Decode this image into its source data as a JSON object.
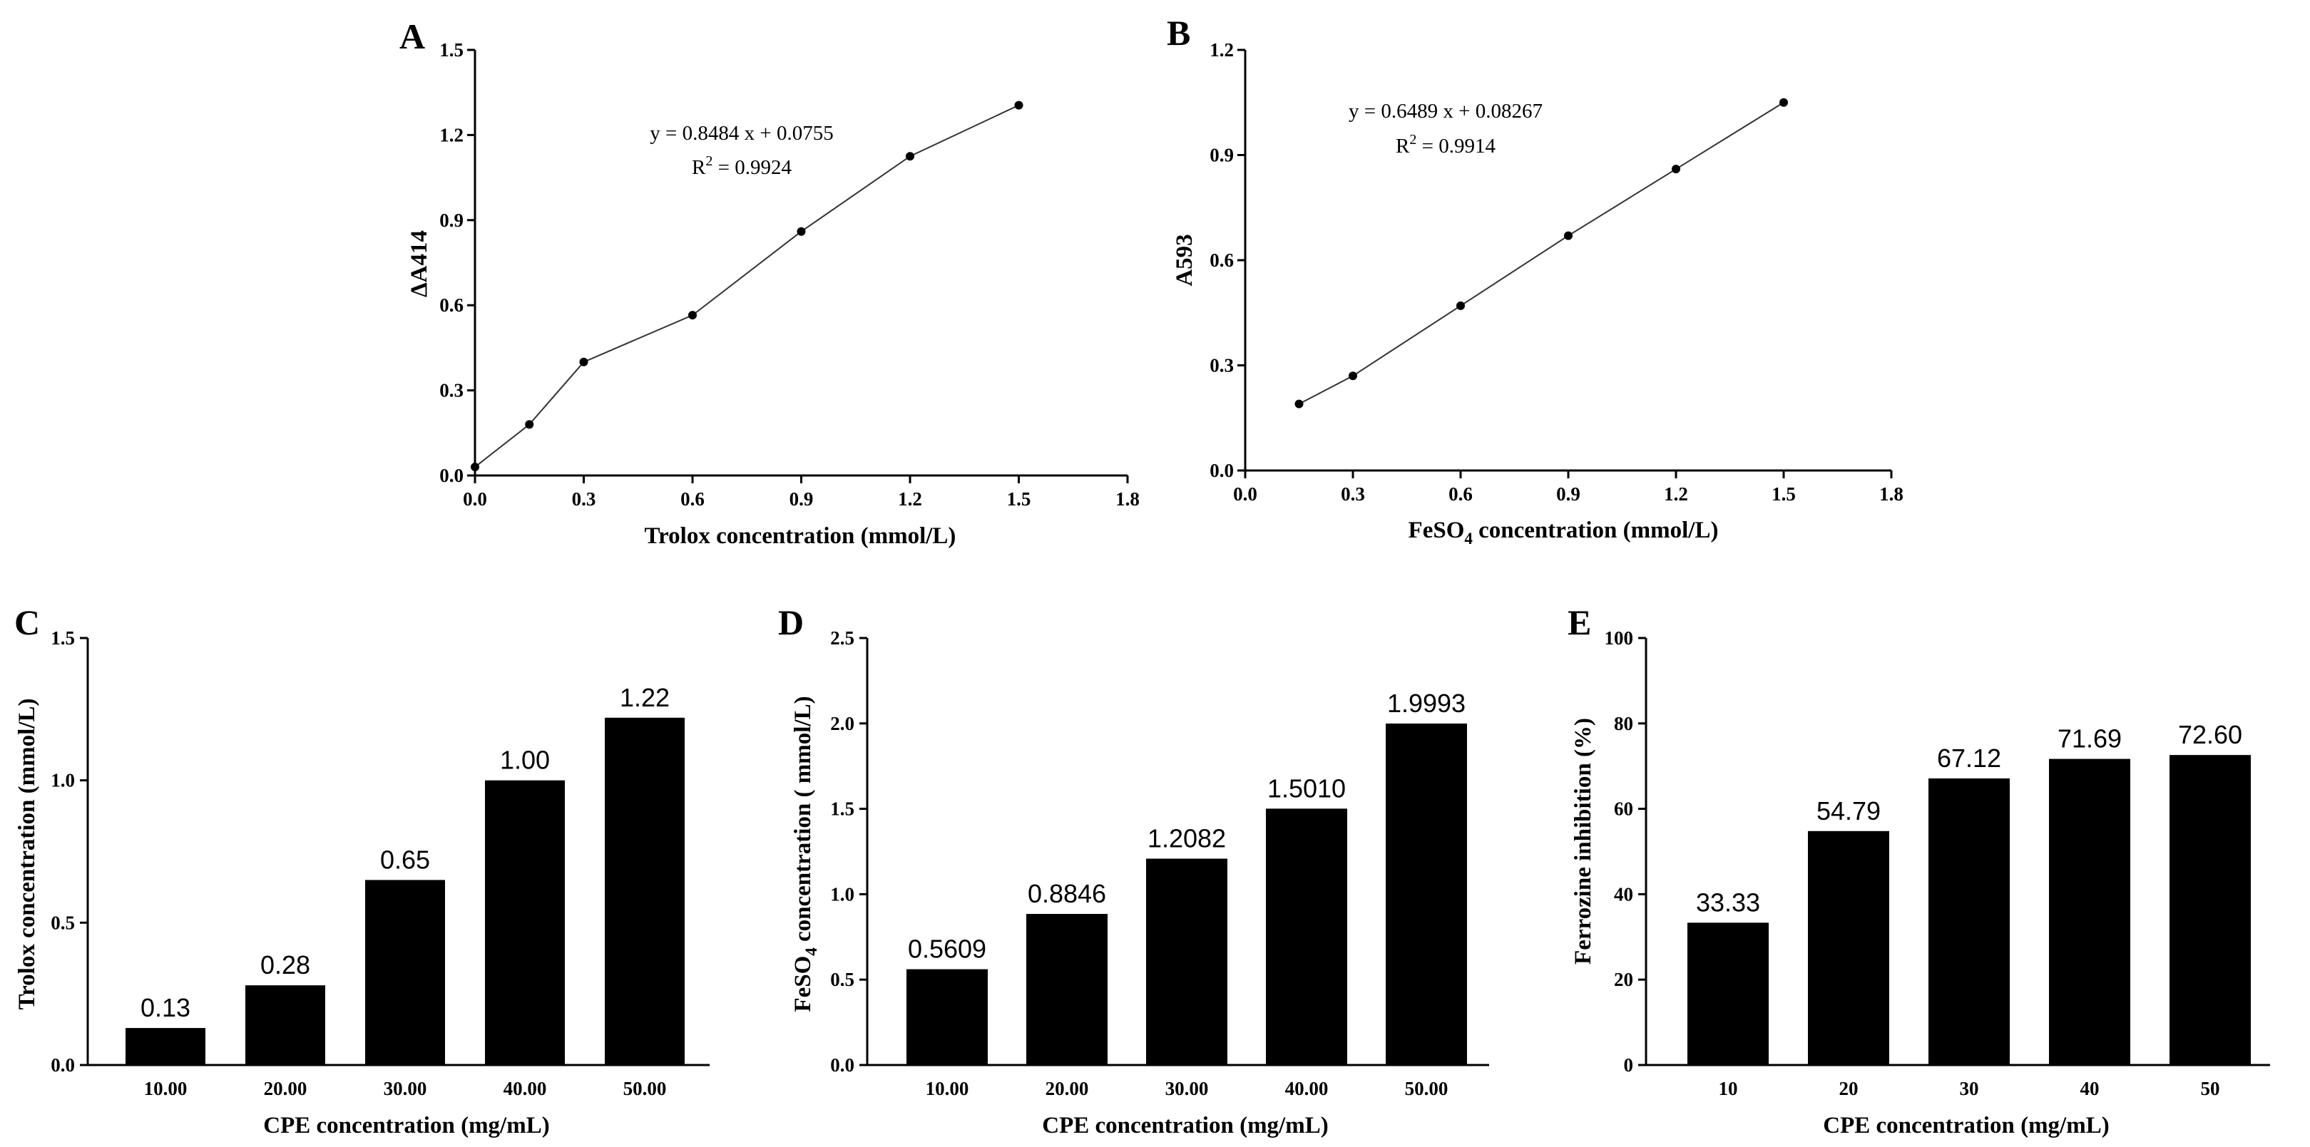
{
  "chart_data": [
    {
      "id": "A",
      "panel_label": "A",
      "type": "line",
      "title": "",
      "xlabel": "Trolox concentration (mmol/L)",
      "ylabel": "ΔA414",
      "xlim": [
        0,
        1.8
      ],
      "ylim": [
        0,
        1.5
      ],
      "xticks": [
        "0.0",
        "0.3",
        "0.6",
        "0.9",
        "1.2",
        "1.5",
        "1.8"
      ],
      "yticks": [
        "0.0",
        "0.3",
        "0.6",
        "0.9",
        "1.2",
        "1.5"
      ],
      "x": [
        0,
        0.15,
        0.3,
        0.6,
        0.9,
        1.2,
        1.5
      ],
      "y": [
        0.03,
        0.18,
        0.4,
        0.565,
        0.86,
        1.125,
        1.305
      ],
      "equation": "y = 0.8484 x + 0.0755",
      "r2_prefix": "R",
      "r2_sup": "2",
      "r2_value": " = 0.9924"
    },
    {
      "id": "B",
      "panel_label": "B",
      "type": "line",
      "title": "",
      "xlabel_main": "FeSO",
      "xlabel_sub": "4",
      "xlabel_rest": " concentration (mmol/L)",
      "ylabel": "A593",
      "xlim": [
        0,
        1.8
      ],
      "ylim": [
        0,
        1.2
      ],
      "xticks": [
        "0.0",
        "0.3",
        "0.6",
        "0.9",
        "1.2",
        "1.5",
        "1.8"
      ],
      "yticks": [
        "0.0",
        "0.3",
        "0.6",
        "0.9",
        "1.2"
      ],
      "x": [
        0.15,
        0.3,
        0.6,
        0.9,
        1.2,
        1.5
      ],
      "y": [
        0.19,
        0.27,
        0.47,
        0.67,
        0.86,
        1.05
      ],
      "equation": "y = 0.6489 x + 0.08267",
      "r2_prefix": "R",
      "r2_sup": "2",
      "r2_value": " = 0.9914"
    },
    {
      "id": "C",
      "panel_label": "C",
      "type": "bar",
      "title": "",
      "xlabel": "CPE concentration (mg/mL)",
      "ylabel": "Trolox concentration (mmol/L)",
      "ylim": [
        0,
        1.5
      ],
      "yticks": [
        "0.0",
        "0.5",
        "1.0",
        "1.5"
      ],
      "categories": [
        "10.00",
        "20.00",
        "30.00",
        "40.00",
        "50.00"
      ],
      "values": [
        0.13,
        0.28,
        0.65,
        1.0,
        1.22
      ],
      "value_labels": [
        "0.13",
        "0.28",
        "0.65",
        "1.00",
        "1.22"
      ]
    },
    {
      "id": "D",
      "panel_label": "D",
      "type": "bar",
      "title": "",
      "xlabel": "CPE concentration (mg/mL)",
      "ylabel_main": "FeSO",
      "ylabel_sub": "4",
      "ylabel_rest": " concentration ( mmol/L)",
      "ylim": [
        0,
        2.5
      ],
      "yticks": [
        "0.0",
        "0.5",
        "1.0",
        "1.5",
        "2.0",
        "2.5"
      ],
      "categories": [
        "10.00",
        "20.00",
        "30.00",
        "40.00",
        "50.00"
      ],
      "values": [
        0.5609,
        0.8846,
        1.2082,
        1.501,
        1.9993
      ],
      "value_labels": [
        "0.5609",
        "0.8846",
        "1.2082",
        "1.5010",
        "1.9993"
      ]
    },
    {
      "id": "E",
      "panel_label": "E",
      "type": "bar",
      "title": "",
      "xlabel": "CPE concentration (mg/mL)",
      "ylabel": "Ferrozine inhibition (%)",
      "ylim": [
        0,
        100
      ],
      "yticks": [
        "0",
        "20",
        "40",
        "60",
        "80",
        "100"
      ],
      "categories": [
        "10",
        "20",
        "30",
        "40",
        "50"
      ],
      "values": [
        33.33,
        54.79,
        67.12,
        71.69,
        72.6
      ],
      "value_labels": [
        "33.33",
        "54.79",
        "67.12",
        "71.69",
        "72.60"
      ]
    }
  ]
}
